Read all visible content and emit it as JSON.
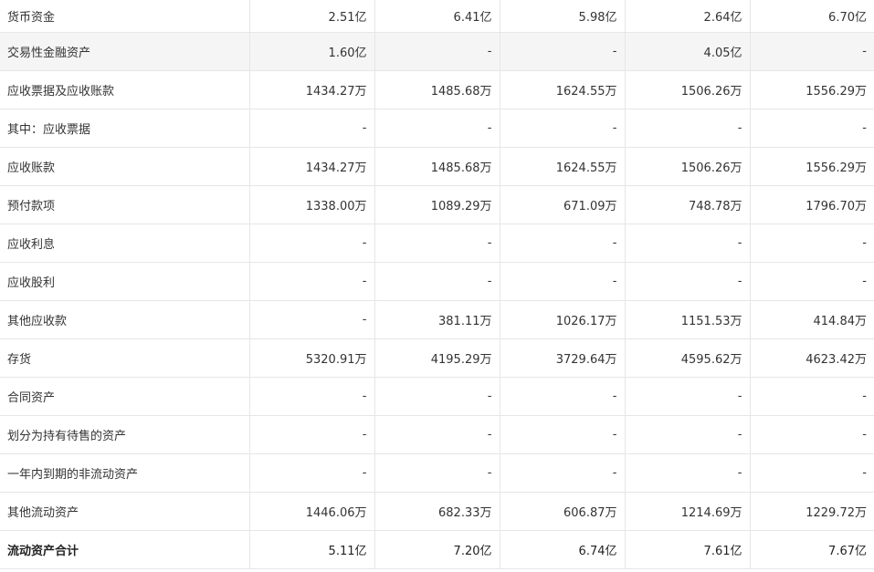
{
  "table": {
    "rows": [
      {
        "label": "货币资金",
        "values": [
          "2.51亿",
          "6.41亿",
          "5.98亿",
          "2.64亿",
          "6.70亿"
        ]
      },
      {
        "label": "交易性金融资产",
        "values": [
          "1.60亿",
          "-",
          "-",
          "4.05亿",
          "-"
        ]
      },
      {
        "label": "应收票据及应收账款",
        "values": [
          "1434.27万",
          "1485.68万",
          "1624.55万",
          "1506.26万",
          "1556.29万"
        ]
      },
      {
        "label": "其中：应收票据",
        "values": [
          "-",
          "-",
          "-",
          "-",
          "-"
        ]
      },
      {
        "label": "应收账款",
        "values": [
          "1434.27万",
          "1485.68万",
          "1624.55万",
          "1506.26万",
          "1556.29万"
        ]
      },
      {
        "label": "预付款项",
        "values": [
          "1338.00万",
          "1089.29万",
          "671.09万",
          "748.78万",
          "1796.70万"
        ]
      },
      {
        "label": "应收利息",
        "values": [
          "-",
          "-",
          "-",
          "-",
          "-"
        ]
      },
      {
        "label": "应收股利",
        "values": [
          "-",
          "-",
          "-",
          "-",
          "-"
        ]
      },
      {
        "label": "其他应收款",
        "values": [
          "-",
          "381.11万",
          "1026.17万",
          "1151.53万",
          "414.84万"
        ]
      },
      {
        "label": "存货",
        "values": [
          "5320.91万",
          "4195.29万",
          "3729.64万",
          "4595.62万",
          "4623.42万"
        ]
      },
      {
        "label": "合同资产",
        "values": [
          "-",
          "-",
          "-",
          "-",
          "-"
        ]
      },
      {
        "label": "划分为持有待售的资产",
        "values": [
          "-",
          "-",
          "-",
          "-",
          "-"
        ]
      },
      {
        "label": "一年内到期的非流动资产",
        "values": [
          "-",
          "-",
          "-",
          "-",
          "-"
        ]
      },
      {
        "label": "其他流动资产",
        "values": [
          "1446.06万",
          "682.33万",
          "606.87万",
          "1214.69万",
          "1229.72万"
        ]
      },
      {
        "label": "流动资产合计",
        "values": [
          "5.11亿",
          "7.20亿",
          "6.74亿",
          "7.61亿",
          "7.67亿"
        ]
      }
    ]
  }
}
